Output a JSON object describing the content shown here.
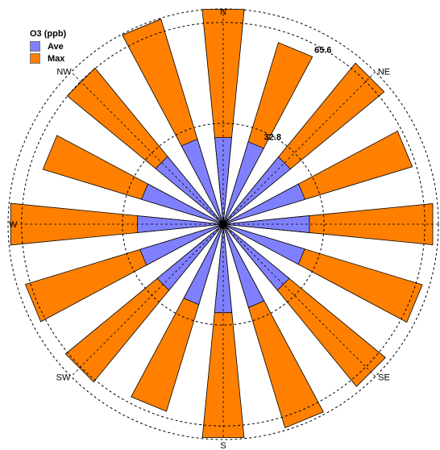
{
  "chart_data": {
    "type": "wind-rose",
    "legend": {
      "title": "O3 (ppb)",
      "entries": [
        {
          "name": "Ave",
          "color": "#8080ff"
        },
        {
          "name": "Max",
          "color": "#ff8000"
        }
      ]
    },
    "directions": [
      "N",
      "NNE",
      "NE",
      "ENE",
      "E",
      "ESE",
      "SE",
      "SSE",
      "S",
      "SSW",
      "SW",
      "WSW",
      "W",
      "WNW",
      "NW",
      "NNW"
    ],
    "direction_labels": [
      "N",
      "NE",
      "SE",
      "S",
      "SW",
      "W",
      "NW"
    ],
    "ring_values": [
      32.8,
      65.6
    ],
    "ring_labels": [
      "32.8",
      "65.6"
    ],
    "rmax": 70,
    "series": [
      {
        "name": "Ave",
        "color": "#8080ff",
        "values": [
          28.3,
          28.0,
          28.3,
          27.8,
          28.2,
          27.7,
          27.8,
          28.3,
          28.9,
          27.3,
          27.8,
          28.3,
          28.0,
          27.8,
          28.5,
          28.9
        ]
      },
      {
        "name": "Max",
        "color": "#ff8000",
        "values": [
          70.2,
          61.7,
          67.8,
          64.3,
          68.5,
          67.7,
          68.3,
          69.2,
          69.7,
          63.6,
          66.4,
          67.3,
          69.5,
          61.3,
          65.7,
          69.7
        ]
      }
    ]
  }
}
